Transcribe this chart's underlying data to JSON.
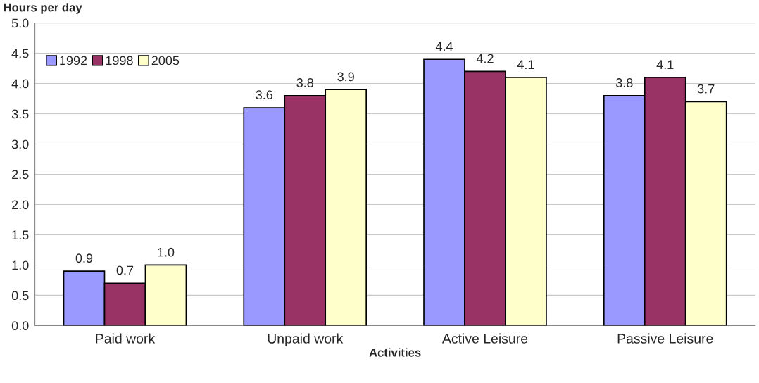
{
  "chart_data": {
    "type": "bar",
    "categories": [
      "Paid work",
      "Unpaid work",
      "Active Leisure",
      "Passive Leisure"
    ],
    "series": [
      {
        "name": "1992",
        "color": "#9999ff",
        "values": [
          0.9,
          3.6,
          4.4,
          3.8
        ],
        "value_labels": [
          "0.9",
          "3.6",
          "4.4",
          "3.8"
        ]
      },
      {
        "name": "1998",
        "color": "#993366",
        "values": [
          0.7,
          3.8,
          4.2,
          4.1
        ],
        "value_labels": [
          "0.7",
          "3.8",
          "4.2",
          "4.1"
        ]
      },
      {
        "name": "2005",
        "color": "#ffffcc",
        "values": [
          1.0,
          3.9,
          4.1,
          3.7
        ],
        "value_labels": [
          "1.0",
          "3.9",
          "4.1",
          "3.7"
        ]
      }
    ],
    "xlabel": "Activities",
    "ylabel": "Hours per day",
    "ylim": [
      0,
      5
    ],
    "yticks": [
      {
        "value": 0,
        "label": "0.0"
      },
      {
        "value": 0.5,
        "label": "0.5"
      },
      {
        "value": 1,
        "label": "1.0"
      },
      {
        "value": 1.5,
        "label": "1.5"
      },
      {
        "value": 2,
        "label": "2.0"
      },
      {
        "value": 2.5,
        "label": "2.5"
      },
      {
        "value": 3,
        "label": "3.0"
      },
      {
        "value": 3.5,
        "label": "3.5"
      },
      {
        "value": 4,
        "label": "4.0"
      },
      {
        "value": 4.5,
        "label": "4.5"
      },
      {
        "value": 5,
        "label": "5.0"
      }
    ],
    "grid": "y",
    "legend": "top left"
  }
}
